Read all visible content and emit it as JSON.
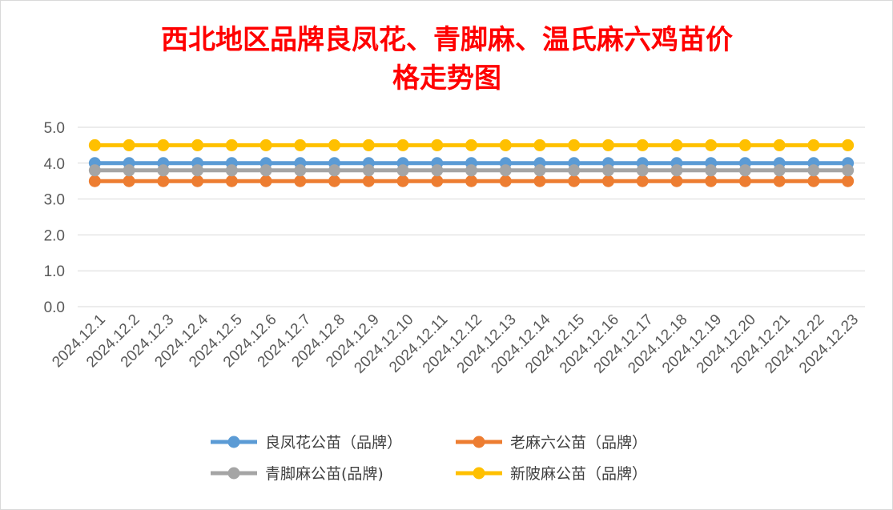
{
  "chart_data": {
    "type": "line",
    "title_lines": [
      "西北地区品牌良凤花、青脚麻、温氏麻六鸡苗价",
      "格走势图"
    ],
    "xlabel": "",
    "ylabel": "",
    "ylim": [
      0,
      5
    ],
    "yticks": [
      "0.0",
      "1.0",
      "2.0",
      "3.0",
      "4.0",
      "5.0"
    ],
    "categories": [
      "2024.12.1",
      "2024.12.2",
      "2024.12.3",
      "2024.12.4",
      "2024.12.5",
      "2024.12.6",
      "2024.12.7",
      "2024.12.8",
      "2024.12.9",
      "2024.12.10",
      "2024.12.11",
      "2024.12.12",
      "2024.12.13",
      "2024.12.14",
      "2024.12.15",
      "2024.12.16",
      "2024.12.17",
      "2024.12.18",
      "2024.12.19",
      "2024.12.20",
      "2024.12.21",
      "2024.12.22",
      "2024.12.23"
    ],
    "grid": true,
    "legend_position": "bottom",
    "series": [
      {
        "name": "良凤花公苗（品牌）",
        "color": "#5b9bd5",
        "values": [
          4.0,
          4.0,
          4.0,
          4.0,
          4.0,
          4.0,
          4.0,
          4.0,
          4.0,
          4.0,
          4.0,
          4.0,
          4.0,
          4.0,
          4.0,
          4.0,
          4.0,
          4.0,
          4.0,
          4.0,
          4.0,
          4.0,
          4.0
        ]
      },
      {
        "name": "老麻六公苗（品牌）",
        "color": "#ed7d31",
        "values": [
          3.5,
          3.5,
          3.5,
          3.5,
          3.5,
          3.5,
          3.5,
          3.5,
          3.5,
          3.5,
          3.5,
          3.5,
          3.5,
          3.5,
          3.5,
          3.5,
          3.5,
          3.5,
          3.5,
          3.5,
          3.5,
          3.5,
          3.5
        ]
      },
      {
        "name": "青脚麻公苗(品牌)",
        "color": "#a5a5a5",
        "values": [
          3.8,
          3.8,
          3.8,
          3.8,
          3.8,
          3.8,
          3.8,
          3.8,
          3.8,
          3.8,
          3.8,
          3.8,
          3.8,
          3.8,
          3.8,
          3.8,
          3.8,
          3.8,
          3.8,
          3.8,
          3.8,
          3.8,
          3.8
        ]
      },
      {
        "name": "新陂麻公苗（品牌）",
        "color": "#ffc000",
        "values": [
          4.5,
          4.5,
          4.5,
          4.5,
          4.5,
          4.5,
          4.5,
          4.5,
          4.5,
          4.5,
          4.5,
          4.5,
          4.5,
          4.5,
          4.5,
          4.5,
          4.5,
          4.5,
          4.5,
          4.5,
          4.5,
          4.5,
          4.5
        ]
      }
    ]
  }
}
